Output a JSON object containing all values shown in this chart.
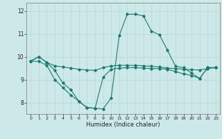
{
  "xlabel": "Humidex (Indice chaleur)",
  "ylabel": "",
  "bg_color": "#cde8e8",
  "grid_color": "#b8d8d8",
  "line_color": "#1a7a6e",
  "x_ticks": [
    0,
    1,
    2,
    3,
    4,
    5,
    6,
    7,
    8,
    9,
    10,
    11,
    12,
    13,
    14,
    15,
    16,
    17,
    18,
    19,
    20,
    21,
    22,
    23
  ],
  "y_ticks": [
    8,
    9,
    10,
    11,
    12
  ],
  "ylim": [
    7.5,
    12.35
  ],
  "xlim": [
    -0.5,
    23.5
  ],
  "line1_x": [
    0,
    1,
    2,
    3,
    4,
    5,
    6,
    7,
    8,
    9,
    10,
    11,
    12,
    13,
    14,
    15,
    16,
    17,
    18,
    19,
    20,
    21,
    22,
    23
  ],
  "line1_y": [
    9.8,
    10.0,
    9.75,
    9.6,
    9.55,
    9.5,
    9.45,
    9.42,
    9.4,
    9.52,
    9.6,
    9.62,
    9.62,
    9.62,
    9.6,
    9.58,
    9.55,
    9.5,
    9.48,
    9.45,
    9.43,
    9.42,
    9.48,
    9.52
  ],
  "line2_x": [
    0,
    1,
    2,
    3,
    4,
    5,
    6,
    7,
    8,
    9,
    10,
    11,
    12,
    13,
    14,
    15,
    16,
    17,
    18,
    19,
    20,
    21,
    22,
    23
  ],
  "line2_y": [
    9.8,
    10.0,
    9.75,
    9.4,
    8.85,
    8.55,
    8.05,
    7.78,
    7.75,
    7.72,
    8.2,
    10.92,
    11.85,
    11.85,
    11.78,
    11.12,
    10.95,
    10.28,
    9.58,
    9.52,
    9.28,
    9.05,
    9.52,
    9.52
  ],
  "line3_x": [
    0,
    1,
    2,
    3,
    4,
    5,
    6,
    7,
    8,
    9,
    10,
    11,
    12,
    13,
    14,
    15,
    16,
    17,
    18,
    19,
    20,
    21,
    22,
    23
  ],
  "line3_y": [
    9.8,
    9.8,
    9.62,
    9.0,
    8.65,
    8.32,
    8.05,
    7.78,
    7.75,
    9.1,
    9.45,
    9.5,
    9.52,
    9.52,
    9.5,
    9.48,
    9.48,
    9.45,
    9.35,
    9.25,
    9.18,
    9.05,
    9.52,
    9.52
  ]
}
